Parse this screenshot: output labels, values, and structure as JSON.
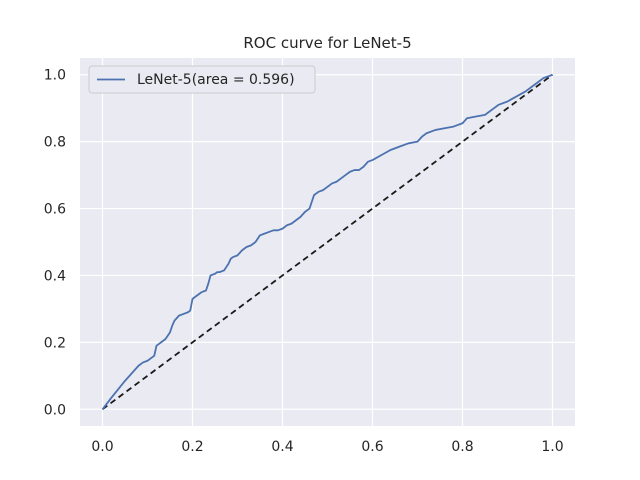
{
  "chart_data": {
    "type": "line",
    "title": "ROC curve for LeNet-5",
    "xlabel": "",
    "ylabel": "",
    "xlim": [
      -0.05,
      1.05
    ],
    "ylim": [
      -0.05,
      1.05
    ],
    "xticks": [
      "0.0",
      "0.2",
      "0.4",
      "0.6",
      "0.8",
      "1.0"
    ],
    "yticks": [
      "0.0",
      "0.2",
      "0.4",
      "0.6",
      "0.8",
      "1.0"
    ],
    "grid": true,
    "legend_position": "top-left",
    "colors": {
      "background": "#eaeaf2",
      "grid": "#ffffff",
      "series": "#4c72b0",
      "diagonal": "#1a1a1a"
    },
    "series": [
      {
        "name": "LeNet-5(area = 0.596)",
        "x": [
          0.0,
          0.02,
          0.05,
          0.08,
          0.09,
          0.1,
          0.11,
          0.115,
          0.12,
          0.125,
          0.13,
          0.14,
          0.15,
          0.155,
          0.16,
          0.17,
          0.18,
          0.19,
          0.195,
          0.2,
          0.21,
          0.215,
          0.22,
          0.23,
          0.235,
          0.24,
          0.25,
          0.255,
          0.26,
          0.27,
          0.28,
          0.285,
          0.29,
          0.3,
          0.31,
          0.32,
          0.33,
          0.34,
          0.35,
          0.36,
          0.37,
          0.38,
          0.39,
          0.4,
          0.41,
          0.42,
          0.43,
          0.44,
          0.45,
          0.46,
          0.465,
          0.47,
          0.48,
          0.49,
          0.5,
          0.51,
          0.52,
          0.53,
          0.54,
          0.55,
          0.56,
          0.57,
          0.58,
          0.59,
          0.6,
          0.62,
          0.64,
          0.66,
          0.68,
          0.7,
          0.71,
          0.72,
          0.74,
          0.76,
          0.78,
          0.8,
          0.81,
          0.83,
          0.85,
          0.86,
          0.87,
          0.88,
          0.9,
          0.92,
          0.94,
          0.96,
          0.98,
          1.0
        ],
        "y": [
          0.0,
          0.035,
          0.085,
          0.13,
          0.14,
          0.145,
          0.155,
          0.16,
          0.19,
          0.195,
          0.2,
          0.21,
          0.23,
          0.25,
          0.265,
          0.28,
          0.285,
          0.29,
          0.295,
          0.33,
          0.34,
          0.345,
          0.35,
          0.355,
          0.375,
          0.4,
          0.405,
          0.41,
          0.41,
          0.415,
          0.435,
          0.45,
          0.455,
          0.46,
          0.475,
          0.485,
          0.49,
          0.5,
          0.52,
          0.525,
          0.53,
          0.535,
          0.535,
          0.54,
          0.55,
          0.555,
          0.565,
          0.575,
          0.59,
          0.6,
          0.62,
          0.64,
          0.65,
          0.655,
          0.665,
          0.675,
          0.68,
          0.69,
          0.7,
          0.71,
          0.715,
          0.715,
          0.725,
          0.74,
          0.745,
          0.76,
          0.775,
          0.785,
          0.795,
          0.8,
          0.815,
          0.825,
          0.835,
          0.84,
          0.845,
          0.855,
          0.87,
          0.875,
          0.88,
          0.89,
          0.9,
          0.91,
          0.92,
          0.935,
          0.95,
          0.97,
          0.99,
          1.0
        ]
      }
    ],
    "reference_line": {
      "x": [
        0.0,
        1.0
      ],
      "y": [
        0.0,
        1.0
      ]
    }
  }
}
